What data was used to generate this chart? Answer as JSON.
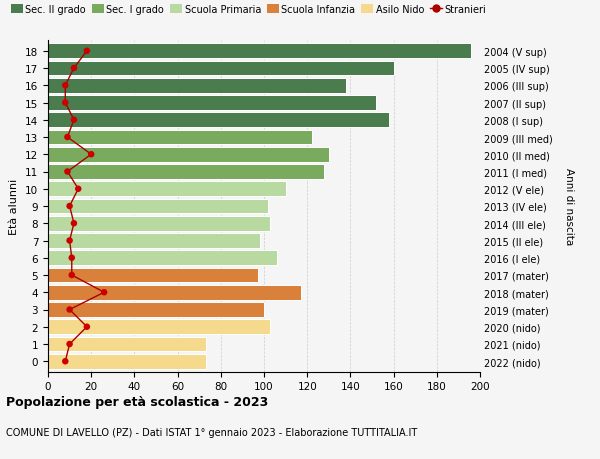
{
  "ages": [
    18,
    17,
    16,
    15,
    14,
    13,
    12,
    11,
    10,
    9,
    8,
    7,
    6,
    5,
    4,
    3,
    2,
    1,
    0
  ],
  "values": [
    196,
    160,
    138,
    152,
    158,
    122,
    130,
    128,
    110,
    102,
    103,
    98,
    106,
    97,
    117,
    100,
    103,
    73,
    73
  ],
  "stranieri": [
    18,
    12,
    8,
    8,
    12,
    9,
    20,
    9,
    14,
    10,
    12,
    10,
    11,
    11,
    26,
    10,
    18,
    10,
    8
  ],
  "right_labels": [
    "2004 (V sup)",
    "2005 (IV sup)",
    "2006 (III sup)",
    "2007 (II sup)",
    "2008 (I sup)",
    "2009 (III med)",
    "2010 (II med)",
    "2011 (I med)",
    "2012 (V ele)",
    "2013 (IV ele)",
    "2014 (III ele)",
    "2015 (II ele)",
    "2016 (I ele)",
    "2017 (mater)",
    "2018 (mater)",
    "2019 (mater)",
    "2020 (nido)",
    "2021 (nido)",
    "2022 (nido)"
  ],
  "bar_colors": [
    "#4a7c4e",
    "#4a7c4e",
    "#4a7c4e",
    "#4a7c4e",
    "#4a7c4e",
    "#7aaa5e",
    "#7aaa5e",
    "#7aaa5e",
    "#b8d9a0",
    "#b8d9a0",
    "#b8d9a0",
    "#b8d9a0",
    "#b8d9a0",
    "#d9813a",
    "#d9813a",
    "#d9813a",
    "#f5d98c",
    "#f5d98c",
    "#f5d98c"
  ],
  "legend_labels": [
    "Sec. II grado",
    "Sec. I grado",
    "Scuola Primaria",
    "Scuola Infanzia",
    "Asilo Nido",
    "Stranieri"
  ],
  "legend_colors": [
    "#4a7c4e",
    "#7aaa5e",
    "#b8d9a0",
    "#d9813a",
    "#f5d98c",
    "#aa0000"
  ],
  "ylabel_left": "Età alunni",
  "ylabel_right": "Anni di nascita",
  "title": "Popolazione per età scolastica - 2023",
  "subtitle": "COMUNE DI LAVELLO (PZ) - Dati ISTAT 1° gennaio 2023 - Elaborazione TUTTITALIA.IT",
  "xlim": [
    0,
    200
  ],
  "xticks": [
    0,
    20,
    40,
    60,
    80,
    100,
    120,
    140,
    160,
    180,
    200
  ],
  "background_color": "#f5f5f5",
  "grid_color": "#cccccc"
}
